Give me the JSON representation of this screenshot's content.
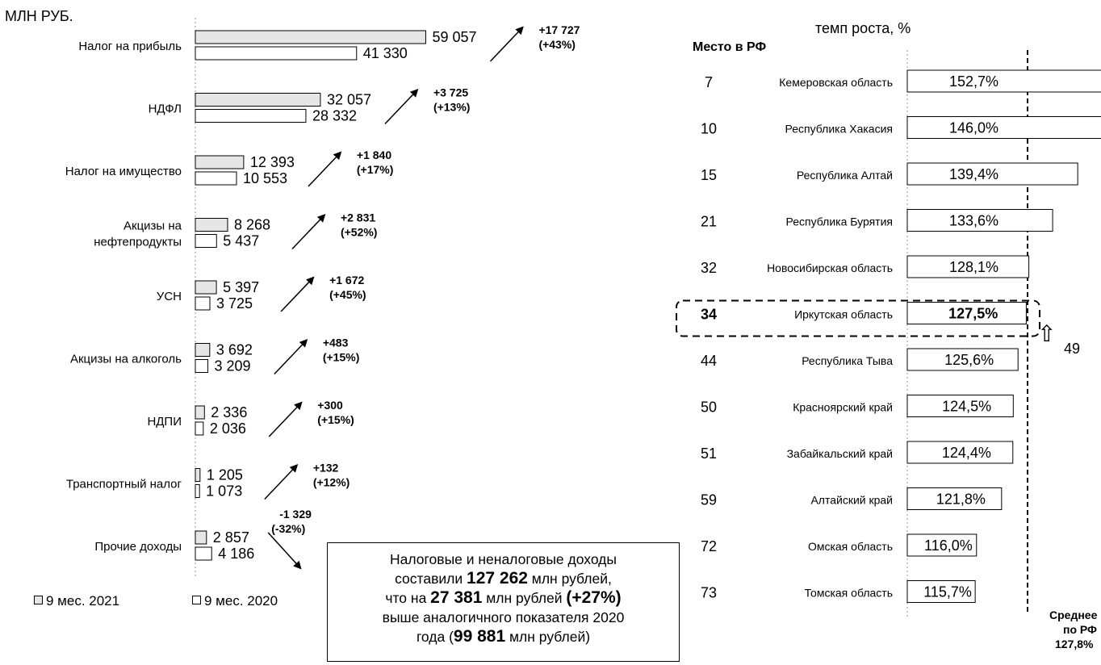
{
  "units_label": "МЛН РУБ.",
  "legend": [
    {
      "label": "9 мес. 2021",
      "color": "#e6e6e6"
    },
    {
      "label": "9 мес. 2020",
      "color": "#ffffff"
    }
  ],
  "summary": {
    "line1": "Налоговые и неналоговые доходы",
    "line2_pre": "составили ",
    "line2_bold": "127 262",
    "line2_post": " млн рублей,",
    "line3_pre": "что на ",
    "line3_bold1": "27 381",
    "line3_mid": " млн рублей ",
    "line3_bold2": "(+27%)",
    "line4": "выше аналогичного показателя 2020",
    "line5_pre": "года (",
    "line5_bold": "99 881",
    "line5_post": " млн рублей)"
  },
  "right_header": {
    "rank_header": "Место в РФ",
    "growth_header": "темп роста, %"
  },
  "average": {
    "line1": "Среднее",
    "line2": "по РФ",
    "value_label": "127,8%",
    "value": 127.8
  },
  "irkutsk_change": "49",
  "chart_data": [
    {
      "type": "bar",
      "orientation": "horizontal",
      "series": [
        {
          "name": "9 мес. 2021",
          "values": [
            59057,
            32057,
            12393,
            8268,
            5397,
            3692,
            2336,
            1205,
            2857
          ],
          "labels": [
            "59 057",
            "32 057",
            "12 393",
            "8 268",
            "5 397",
            "3 692",
            "2 336",
            "1 205",
            "2 857"
          ]
        },
        {
          "name": "9 мес. 2020",
          "values": [
            41330,
            28332,
            10553,
            5437,
            3725,
            3209,
            2036,
            1073,
            4186
          ],
          "labels": [
            "41 330",
            "28 332",
            "10 553",
            "5 437",
            "3 725",
            "3 209",
            "2 036",
            "1 073",
            "4 186"
          ]
        }
      ],
      "categories": [
        [
          "Налог на прибыль"
        ],
        [
          "НДФЛ"
        ],
        [
          "Налог на имущество"
        ],
        [
          "Акцизы на",
          "нефтепродукты"
        ],
        [
          "УСН"
        ],
        [
          "Акцизы на алкоголь"
        ],
        [
          "НДПИ"
        ],
        [
          "Транспортный налог"
        ],
        [
          "Прочие доходы"
        ]
      ],
      "changes": [
        {
          "abs": "+17 727",
          "pct": "(+43%)",
          "direction": "up"
        },
        {
          "abs": "+3 725",
          "pct": "(+13%)",
          "direction": "up"
        },
        {
          "abs": "+1 840",
          "pct": "(+17%)",
          "direction": "up"
        },
        {
          "abs": "+2 831",
          "pct": "(+52%)",
          "direction": "up"
        },
        {
          "abs": "+1 672",
          "pct": "(+45%)",
          "direction": "up"
        },
        {
          "abs": "+483",
          "pct": "(+15%)",
          "direction": "up"
        },
        {
          "abs": "+300",
          "pct": "(+15%)",
          "direction": "up"
        },
        {
          "abs": "+132",
          "pct": "(+12%)",
          "direction": "up"
        },
        {
          "abs": "-1 329",
          "pct": "(-32%)",
          "direction": "down"
        }
      ]
    },
    {
      "type": "bar",
      "orientation": "horizontal",
      "xlim": [
        100,
        160
      ],
      "categories": [
        "Кемеровская область",
        "Республика Хакасия",
        "Республика Алтай",
        "Республика Бурятия",
        "Новосибирская область",
        "Иркутская область",
        "Республика Тыва",
        "Красноярский край",
        "Забайкальский край",
        "Алтайский край",
        "Омская область",
        "Томская область"
      ],
      "ranks": [
        "7",
        "10",
        "15",
        "21",
        "32",
        "34",
        "44",
        "50",
        "51",
        "59",
        "72",
        "73"
      ],
      "values": [
        152.7,
        146.0,
        139.4,
        133.6,
        128.1,
        127.5,
        125.6,
        124.5,
        124.4,
        121.8,
        116.0,
        115.7
      ],
      "labels": [
        "152,7%",
        "146,0%",
        "139,4%",
        "133,6%",
        "128,1%",
        "127,5%",
        "125,6%",
        "124,5%",
        "124,4%",
        "121,8%",
        "116,0%",
        "115,7%"
      ],
      "highlight": "Иркутская область"
    }
  ]
}
